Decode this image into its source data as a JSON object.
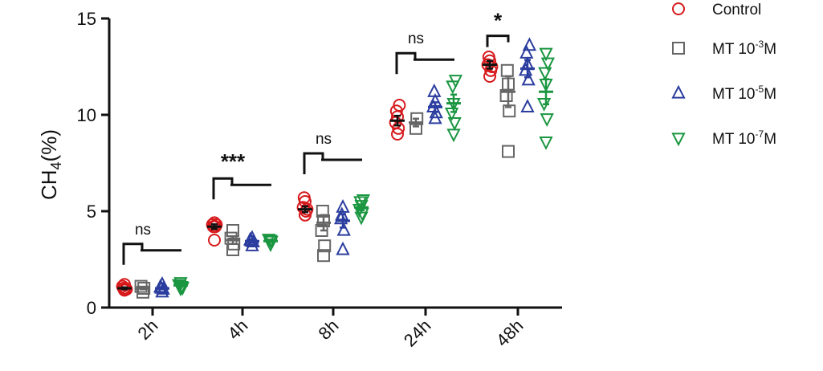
{
  "chart_data": {
    "type": "scatter",
    "title": "",
    "xlabel": "",
    "ylabel": {
      "main": "CH",
      "sub": "4",
      "rest": "(%)"
    },
    "ylim": [
      0,
      15
    ],
    "yticks": [
      "0",
      "5",
      "10",
      "15"
    ],
    "categories": [
      "2h",
      "4h",
      "8h",
      "24h",
      "48h"
    ],
    "significance": [
      "ns",
      "***",
      "ns",
      "ns",
      "*"
    ],
    "series": [
      {
        "name": "Control",
        "legend_main": "Control",
        "legend_sup": "",
        "legend_tail": "",
        "marker": "circle",
        "color": "#d7191c",
        "points": [
          [
            0.9,
            1.0,
            1.1,
            1.2,
            1.0,
            0.95
          ],
          [
            3.5,
            4.2,
            4.3,
            4.4,
            4.2,
            4.3
          ],
          [
            4.8,
            5.0,
            5.2,
            5.5,
            5.7,
            5.1
          ],
          [
            9.0,
            9.3,
            9.6,
            9.9,
            10.2,
            10.5
          ],
          [
            12.0,
            12.3,
            12.6,
            12.8,
            13.0,
            12.5
          ]
        ],
        "mean": [
          1.0,
          4.2,
          5.1,
          9.7,
          12.6
        ],
        "sem": [
          0.05,
          0.12,
          0.15,
          0.25,
          0.2
        ]
      },
      {
        "name": "MT 10-3M",
        "legend_main": "MT 10",
        "legend_sup": "-3",
        "legend_tail": "M",
        "marker": "square",
        "color": "#666666",
        "points": [
          [
            0.8,
            1.0,
            1.1
          ],
          [
            3.0,
            3.3,
            3.6,
            4.0
          ],
          [
            2.7,
            3.2,
            4.0,
            4.5,
            5.0
          ],
          [
            9.3,
            9.8
          ],
          [
            8.1,
            10.2,
            11.0,
            11.6,
            12.3
          ]
        ],
        "mean": [
          1.0,
          3.5,
          4.4,
          9.6,
          11.2
        ],
        "sem": [
          0.05,
          0.2,
          0.4,
          0.2,
          0.8
        ]
      },
      {
        "name": "MT 10-5M",
        "legend_main": "MT 10",
        "legend_sup": "-5",
        "legend_tail": "M",
        "marker": "triangle-up",
        "color": "#2b3d9e",
        "points": [
          [
            0.8,
            0.95,
            1.05,
            1.2,
            1.0
          ],
          [
            3.2,
            3.4,
            3.5,
            3.6,
            3.45
          ],
          [
            3.0,
            4.0,
            4.6,
            5.2,
            4.8
          ],
          [
            9.8,
            10.1,
            10.4,
            10.7,
            11.2
          ],
          [
            10.4,
            11.8,
            12.3,
            12.6,
            13.2,
            13.6
          ]
        ],
        "mean": [
          1.0,
          3.45,
          4.5,
          10.4,
          12.4
        ],
        "sem": [
          0.05,
          0.08,
          0.35,
          0.25,
          0.45
        ]
      },
      {
        "name": "MT 10-7M",
        "legend_main": "MT 10",
        "legend_sup": "-7",
        "legend_tail": "M",
        "marker": "triangle-down",
        "color": "#1a9641",
        "points": [
          [
            1.0,
            1.1,
            1.2,
            1.3,
            1.15,
            1.05
          ],
          [
            3.3,
            3.45,
            3.55,
            3.5
          ],
          [
            4.7,
            4.9,
            5.1,
            5.3,
            5.5,
            5.6
          ],
          [
            9.0,
            9.6,
            10.1,
            10.6,
            11.5,
            11.8
          ],
          [
            8.6,
            9.8,
            10.6,
            11.6,
            12.2,
            12.7,
            13.2
          ]
        ],
        "mean": [
          1.15,
          3.45,
          5.2,
          10.6,
          11.2
        ],
        "sem": [
          0.04,
          0.05,
          0.15,
          0.45,
          0.65
        ]
      }
    ]
  }
}
